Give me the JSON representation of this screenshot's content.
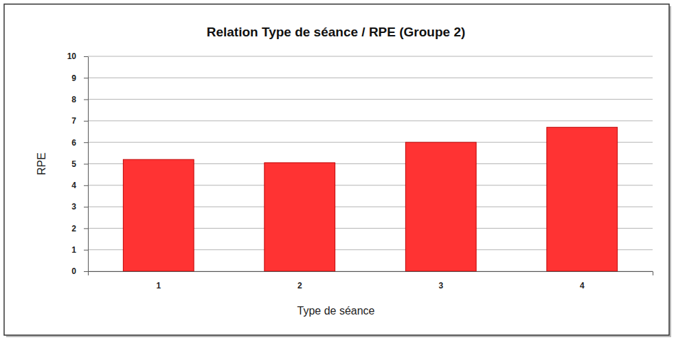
{
  "chart_data": {
    "type": "bar",
    "title": "Relation Type de séance / RPE (Groupe 2)",
    "x_label": "Type de séance",
    "y_label": "RPE",
    "categories": [
      "1",
      "2",
      "3",
      "4"
    ],
    "values": [
      5.2,
      5.05,
      6.0,
      6.7
    ],
    "color": "#ff3333",
    "ylim": [
      0,
      10
    ],
    "yticks": [
      0,
      1,
      2,
      3,
      4,
      5,
      6,
      7,
      8,
      9,
      10
    ],
    "grid": true
  }
}
